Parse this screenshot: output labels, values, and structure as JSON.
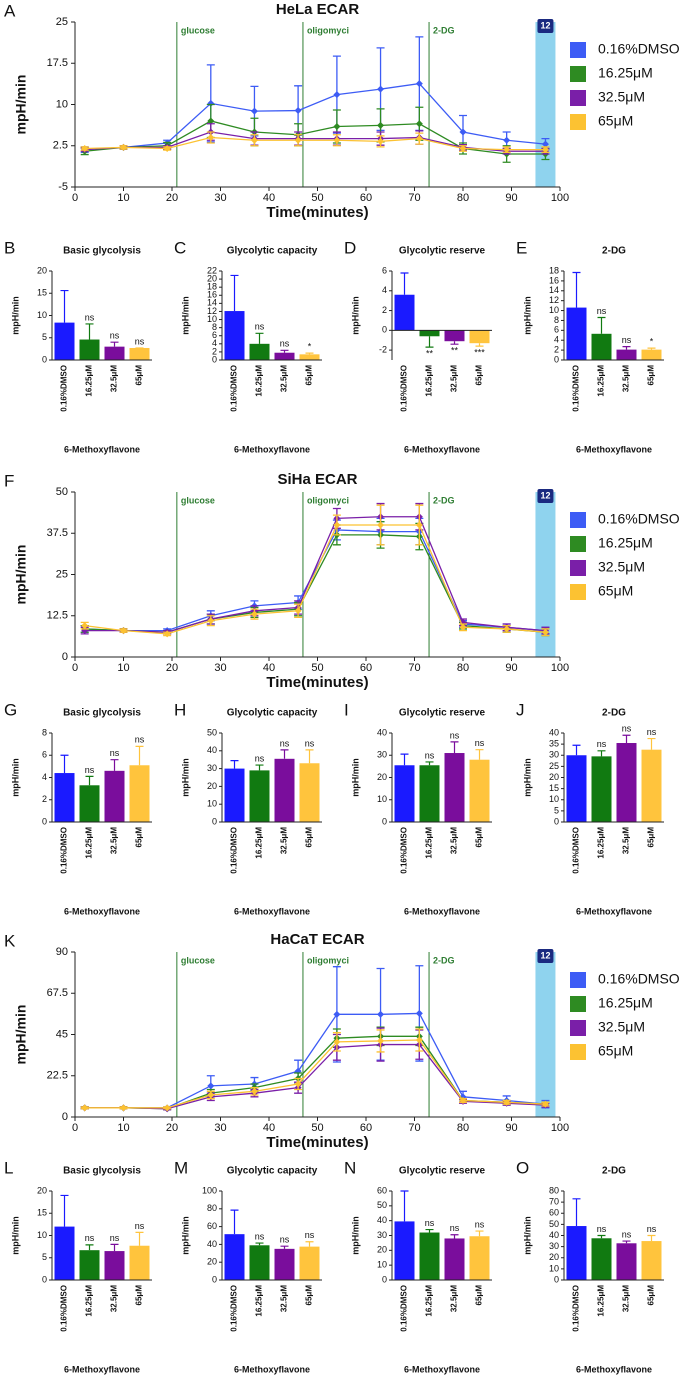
{
  "chart_data": [
    {
      "type": "line",
      "panel": "A",
      "title": "HeLa ECAR",
      "xlabel": "Time(minutes)",
      "ylabel": "mpH/min",
      "x": [
        2,
        10,
        19,
        28,
        37,
        46,
        54,
        63,
        71,
        80,
        89,
        97
      ],
      "xlim": [
        0,
        100
      ],
      "xticks": [
        0,
        10,
        20,
        30,
        40,
        50,
        60,
        70,
        80,
        90,
        100
      ],
      "ylim": [
        -5,
        25
      ],
      "yticks": [
        -5,
        2.5,
        10,
        17.5,
        25
      ],
      "annotations": [
        {
          "text": "glucose",
          "x": 21
        },
        {
          "text": "oligomyci",
          "x": 47
        },
        {
          "text": "2-DG",
          "x": 73
        }
      ],
      "marker": {
        "text": "12",
        "x": 97
      },
      "series": [
        {
          "name": "0.16%DMSO",
          "color": "#3d5cf5",
          "values": [
            1.8,
            2.2,
            3.0,
            10.2,
            8.8,
            8.9,
            11.8,
            12.8,
            13.8,
            5.0,
            3.5,
            2.8
          ],
          "errors": [
            0.5,
            0.3,
            0.5,
            7,
            4.5,
            4.5,
            7,
            7.5,
            8.5,
            3,
            1.5,
            1
          ]
        },
        {
          "name": "16.25μM",
          "color": "#2e8b22",
          "values": [
            1.5,
            2.2,
            2.5,
            7.0,
            5.0,
            4.5,
            6.0,
            6.2,
            6.5,
            2.0,
            1.0,
            1.0
          ],
          "errors": [
            0.6,
            0.3,
            0.6,
            3,
            2.5,
            2,
            3,
            3,
            3,
            1,
            1.5,
            1
          ]
        },
        {
          "name": "32.5μM",
          "color": "#7a1fa8",
          "values": [
            1.8,
            2.2,
            2.2,
            5.0,
            3.8,
            3.8,
            3.8,
            3.8,
            4.0,
            2.2,
            1.5,
            1.5
          ],
          "errors": [
            0.3,
            0.3,
            0.3,
            1.5,
            1.2,
            1.2,
            1.2,
            1.2,
            1.2,
            0.5,
            0.5,
            0.5
          ]
        },
        {
          "name": "65μM",
          "color": "#fcc232",
          "values": [
            2.0,
            2.2,
            2.0,
            4.0,
            3.5,
            3.5,
            3.5,
            3.3,
            3.8,
            2.0,
            1.8,
            1.8
          ],
          "errors": [
            0.3,
            0.3,
            0.3,
            1.0,
            1.0,
            1.0,
            1.0,
            1.0,
            1.0,
            0.5,
            0.5,
            0.5
          ]
        }
      ]
    },
    {
      "type": "bar",
      "panel": "B",
      "title": "Basic glycolysis",
      "xlabel": "6-Methoxyflavone",
      "ylabel": "mpH/min",
      "categories": [
        "0.16%DMSO",
        "16.25μM",
        "32.5μM",
        "65μM"
      ],
      "colors": [
        "#1a1aff",
        "#117a11",
        "#7a0d9c",
        "#ffc43d"
      ],
      "values": [
        8.4,
        4.6,
        3.0,
        2.7
      ],
      "errors": [
        7.2,
        3.5,
        1.0,
        0
      ],
      "significance": [
        null,
        "ns",
        "ns",
        "ns"
      ],
      "ylim": [
        0,
        20
      ],
      "yticks": [
        0,
        5,
        10,
        15,
        20
      ]
    },
    {
      "type": "bar",
      "panel": "C",
      "title": "Glycolytic capacity",
      "xlabel": "6-Methoxyflavone",
      "ylabel": "mpH/min",
      "categories": [
        "0.16%DMSO",
        "16.25μM",
        "32.5μM",
        "65μM"
      ],
      "colors": [
        "#1a1aff",
        "#117a11",
        "#7a0d9c",
        "#ffc43d"
      ],
      "values": [
        12.1,
        4.0,
        1.8,
        1.4
      ],
      "errors": [
        8.8,
        2.6,
        0.6,
        0.3
      ],
      "significance": [
        null,
        "ns",
        "ns",
        "*"
      ],
      "ylim": [
        0,
        22
      ],
      "yticks": [
        0,
        2,
        4,
        6,
        8,
        10,
        12,
        14,
        16,
        18,
        20,
        22
      ]
    },
    {
      "type": "bar",
      "panel": "D",
      "title": "Glycolytic reserve",
      "xlabel": "6-Methoxyflavone",
      "ylabel": "mpH/min",
      "categories": [
        "0.16%DMSO",
        "16.25μM",
        "32.5μM",
        "65μM"
      ],
      "colors": [
        "#1a1aff",
        "#117a11",
        "#7a0d9c",
        "#ffc43d"
      ],
      "values": [
        3.6,
        -0.6,
        -1.1,
        -1.3
      ],
      "errors": [
        2.2,
        1.1,
        0.3,
        0.3
      ],
      "significance": [
        null,
        "**",
        "**",
        "***"
      ],
      "ylim": [
        -3,
        6
      ],
      "yticks": [
        -2,
        0,
        2,
        4,
        6
      ]
    },
    {
      "type": "bar",
      "panel": "E",
      "title": "2-DG",
      "xlabel": "6-Methoxyflavone",
      "ylabel": "mpH/min",
      "categories": [
        "0.16%DMSO",
        "16.25μM",
        "32.5μM",
        "65μM"
      ],
      "colors": [
        "#1a1aff",
        "#117a11",
        "#7a0d9c",
        "#ffc43d"
      ],
      "values": [
        10.6,
        5.3,
        2.1,
        2.1
      ],
      "errors": [
        7.1,
        3.3,
        0.6,
        0.3
      ],
      "significance": [
        null,
        "ns",
        "ns",
        "*"
      ],
      "ylim": [
        0,
        18
      ],
      "yticks": [
        0,
        2,
        4,
        6,
        8,
        10,
        12,
        14,
        16,
        18
      ]
    },
    {
      "type": "line",
      "panel": "F",
      "title": "SiHa ECAR",
      "xlabel": "Time(minutes)",
      "ylabel": "mpH/min",
      "x": [
        2,
        10,
        19,
        28,
        37,
        46,
        54,
        63,
        71,
        80,
        89,
        97
      ],
      "xlim": [
        0,
        100
      ],
      "xticks": [
        0,
        10,
        20,
        30,
        40,
        50,
        60,
        70,
        80,
        90,
        100
      ],
      "ylim": [
        0,
        50
      ],
      "yticks": [
        0,
        12.5,
        25,
        37.5,
        50
      ],
      "annotations": [
        {
          "text": "glucose",
          "x": 21
        },
        {
          "text": "oligomyci",
          "x": 47
        },
        {
          "text": "2-DG",
          "x": 73
        }
      ],
      "marker": {
        "text": "12",
        "x": 97
      },
      "series": [
        {
          "name": "0.16%DMSO",
          "color": "#3d5cf5",
          "values": [
            8.5,
            8.0,
            8.0,
            12.5,
            15.5,
            16.5,
            38.5,
            38.0,
            38.0,
            10.0,
            9.0,
            8.0
          ],
          "errors": [
            1,
            0.5,
            0.5,
            1.5,
            1.5,
            2,
            3,
            4,
            4,
            1,
            1,
            1
          ]
        },
        {
          "name": "16.25μM",
          "color": "#2e8b22",
          "values": [
            8.5,
            8.0,
            7.5,
            11.5,
            13.5,
            14.5,
            37.0,
            37.0,
            36.5,
            9.5,
            8.5,
            7.5
          ],
          "errors": [
            1,
            0.5,
            0.5,
            1.5,
            1.5,
            2,
            3,
            4,
            4,
            1,
            1,
            1
          ]
        },
        {
          "name": "32.5μM",
          "color": "#7a1fa8",
          "values": [
            8.0,
            8.0,
            7.5,
            11.5,
            14.0,
            15.0,
            42.0,
            42.5,
            42.5,
            10.5,
            9.0,
            8.0
          ],
          "errors": [
            1,
            0.5,
            0.5,
            1.5,
            1.5,
            2,
            3,
            4,
            4,
            1,
            1,
            1
          ]
        },
        {
          "name": "65μM",
          "color": "#fcc232",
          "values": [
            9.5,
            8.0,
            7.0,
            11.0,
            13.0,
            14.0,
            40.0,
            40.0,
            40.0,
            9.0,
            8.5,
            7.5
          ],
          "errors": [
            1,
            0.5,
            0.5,
            1.5,
            1.5,
            2,
            3,
            6,
            6,
            1,
            1,
            1
          ]
        }
      ]
    },
    {
      "type": "bar",
      "panel": "G",
      "title": "Basic glycolysis",
      "xlabel": "6-Methoxyflavone",
      "ylabel": "mpH/min",
      "categories": [
        "0.16%DMSO",
        "16.25μM",
        "32.5μM",
        "65μM"
      ],
      "colors": [
        "#1a1aff",
        "#117a11",
        "#7a0d9c",
        "#ffc43d"
      ],
      "values": [
        4.4,
        3.3,
        4.6,
        5.1
      ],
      "errors": [
        1.6,
        0.8,
        1.0,
        1.7
      ],
      "significance": [
        null,
        "ns",
        "ns",
        "ns"
      ],
      "ylim": [
        0,
        8
      ],
      "yticks": [
        0,
        2,
        4,
        6,
        8
      ]
    },
    {
      "type": "bar",
      "panel": "H",
      "title": "Glycolytic capacity",
      "xlabel": "6-Methoxyflavone",
      "ylabel": "mpH/min",
      "categories": [
        "0.16%DMSO",
        "16.25μM",
        "32.5μM",
        "65μM"
      ],
      "colors": [
        "#1a1aff",
        "#117a11",
        "#7a0d9c",
        "#ffc43d"
      ],
      "values": [
        30,
        29,
        35.5,
        33
      ],
      "errors": [
        4.5,
        3,
        5,
        7.5
      ],
      "significance": [
        null,
        "ns",
        "ns",
        "ns"
      ],
      "ylim": [
        0,
        50
      ],
      "yticks": [
        0,
        10,
        20,
        30,
        40,
        50
      ]
    },
    {
      "type": "bar",
      "panel": "I",
      "title": "Glycolytic reserve",
      "xlabel": "6-Methoxyflavone",
      "ylabel": "mpH/min",
      "categories": [
        "0.16%DMSO",
        "16.25μM",
        "32.5μM",
        "65μM"
      ],
      "colors": [
        "#1a1aff",
        "#117a11",
        "#7a0d9c",
        "#ffc43d"
      ],
      "values": [
        25.5,
        25.5,
        31,
        28
      ],
      "errors": [
        5,
        1.5,
        5,
        4.5
      ],
      "significance": [
        null,
        "ns",
        "ns",
        "ns"
      ],
      "ylim": [
        0,
        40
      ],
      "yticks": [
        0,
        10,
        20,
        30,
        40
      ]
    },
    {
      "type": "bar",
      "panel": "J",
      "title": "2-DG",
      "xlabel": "6-Methoxyflavone",
      "ylabel": "mpH/min",
      "categories": [
        "0.16%DMSO",
        "16.25μM",
        "32.5μM",
        "65μM"
      ],
      "colors": [
        "#1a1aff",
        "#117a11",
        "#7a0d9c",
        "#ffc43d"
      ],
      "values": [
        30,
        29.5,
        35.5,
        32.5
      ],
      "errors": [
        4.5,
        2.5,
        3.5,
        5
      ],
      "significance": [
        null,
        "ns",
        "ns",
        "ns"
      ],
      "ylim": [
        0,
        40
      ],
      "yticks": [
        0,
        5,
        10,
        15,
        20,
        25,
        30,
        35,
        40
      ]
    },
    {
      "type": "line",
      "panel": "K",
      "title": "HaCaT ECAR",
      "xlabel": "Time(minutes)",
      "ylabel": "mpH/min",
      "x": [
        2,
        10,
        19,
        28,
        37,
        46,
        54,
        63,
        71,
        80,
        89,
        97
      ],
      "xlim": [
        0,
        100
      ],
      "xticks": [
        0,
        10,
        20,
        30,
        40,
        50,
        60,
        70,
        80,
        90,
        100
      ],
      "ylim": [
        0,
        90
      ],
      "yticks": [
        0,
        22.5,
        45,
        67.5,
        90
      ],
      "annotations": [
        {
          "text": "glucose",
          "x": 21
        },
        {
          "text": "oligomyci",
          "x": 47
        },
        {
          "text": "2-DG",
          "x": 73
        }
      ],
      "marker": {
        "text": "12",
        "x": 97
      },
      "series": [
        {
          "name": "0.16%DMSO",
          "color": "#3d5cf5",
          "values": [
            5,
            5,
            5,
            17,
            18,
            25,
            56,
            56,
            56.5,
            11,
            9,
            7
          ],
          "errors": [
            0.5,
            0.5,
            0.5,
            5.5,
            3.5,
            6,
            26,
            25,
            26,
            3,
            2.5,
            2
          ]
        },
        {
          "name": "16.25μM",
          "color": "#2e8b22",
          "values": [
            5,
            5,
            4.5,
            13,
            16,
            21,
            43,
            44,
            44,
            9,
            8,
            7
          ],
          "errors": [
            0.5,
            0.5,
            0.5,
            2,
            2,
            3,
            5,
            5,
            5,
            1,
            1,
            1
          ]
        },
        {
          "name": "32.5μM",
          "color": "#7a1fa8",
          "values": [
            5,
            5,
            4.5,
            11,
            13,
            16,
            38,
            39.5,
            39.5,
            8.5,
            7.5,
            6.5
          ],
          "errors": [
            0.5,
            0.5,
            0.5,
            2,
            2,
            3,
            7,
            9,
            8,
            1,
            1,
            1
          ]
        },
        {
          "name": "65μM",
          "color": "#fcc232",
          "values": [
            5,
            5,
            5,
            12,
            14,
            18,
            41,
            41.5,
            42,
            9,
            8,
            7
          ],
          "errors": [
            0.5,
            0.5,
            0.5,
            2,
            2,
            3,
            5,
            6,
            6,
            1,
            1,
            1
          ]
        }
      ]
    },
    {
      "type": "bar",
      "panel": "L",
      "title": "Basic glycolysis",
      "xlabel": "6-Methoxyflavone",
      "ylabel": "mpH/min",
      "categories": [
        "0.16%DMSO",
        "16.25μM",
        "32.5μM",
        "65μM"
      ],
      "colors": [
        "#1a1aff",
        "#117a11",
        "#7a0d9c",
        "#ffc43d"
      ],
      "values": [
        12.0,
        6.7,
        6.5,
        7.7
      ],
      "errors": [
        7.0,
        1.2,
        1.5,
        3.0
      ],
      "significance": [
        null,
        "ns",
        "ns",
        "ns"
      ],
      "ylim": [
        0,
        20
      ],
      "yticks": [
        0,
        5,
        10,
        15,
        20
      ]
    },
    {
      "type": "bar",
      "panel": "M",
      "title": "Glycolytic capacity",
      "xlabel": "6-Methoxyflavone",
      "ylabel": "mpH/min",
      "categories": [
        "0.16%DMSO",
        "16.25μM",
        "32.5μM",
        "65μM"
      ],
      "colors": [
        "#1a1aff",
        "#117a11",
        "#7a0d9c",
        "#ffc43d"
      ],
      "values": [
        51.5,
        39,
        35,
        37.5
      ],
      "errors": [
        27,
        2.5,
        3,
        5.5
      ],
      "significance": [
        null,
        "ns",
        "ns",
        "ns"
      ],
      "ylim": [
        0,
        100
      ],
      "yticks": [
        0,
        20,
        40,
        60,
        80,
        100
      ]
    },
    {
      "type": "bar",
      "panel": "N",
      "title": "Glycolytic reserve",
      "xlabel": "6-Methoxyflavone",
      "ylabel": "mpH/min",
      "categories": [
        "0.16%DMSO",
        "16.25μM",
        "32.5μM",
        "65μM"
      ],
      "colors": [
        "#1a1aff",
        "#117a11",
        "#7a0d9c",
        "#ffc43d"
      ],
      "values": [
        39.5,
        32,
        28,
        29.5
      ],
      "errors": [
        20.5,
        2,
        2.5,
        3.5
      ],
      "significance": [
        null,
        "ns",
        "ns",
        "ns"
      ],
      "ylim": [
        0,
        60
      ],
      "yticks": [
        0,
        10,
        20,
        30,
        40,
        50,
        60
      ]
    },
    {
      "type": "bar",
      "panel": "O",
      "title": "2-DG",
      "xlabel": "6-Methoxyflavone",
      "ylabel": "mpH/min",
      "categories": [
        "0.16%DMSO",
        "16.25μM",
        "32.5μM",
        "65μM"
      ],
      "colors": [
        "#1a1aff",
        "#117a11",
        "#7a0d9c",
        "#ffc43d"
      ],
      "values": [
        48.5,
        37.5,
        33,
        35
      ],
      "errors": [
        24.5,
        2.5,
        2,
        5
      ],
      "significance": [
        null,
        "ns",
        "ns",
        "ns"
      ],
      "ylim": [
        0,
        80
      ],
      "yticks": [
        0,
        10,
        20,
        30,
        40,
        50,
        60,
        70,
        80
      ]
    }
  ]
}
